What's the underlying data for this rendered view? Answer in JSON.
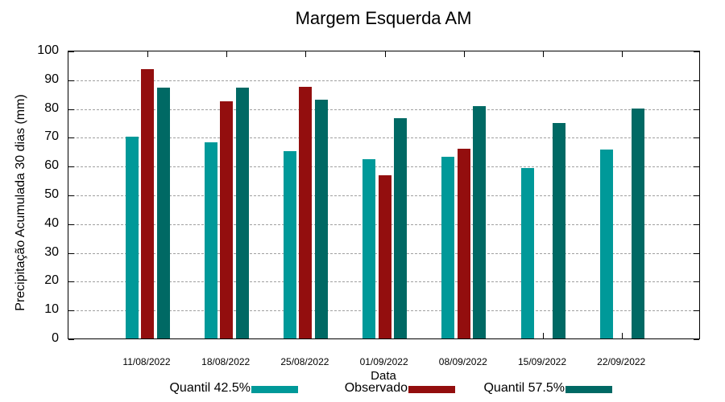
{
  "chart_data": {
    "type": "bar",
    "title": "Margem Esquerda AM",
    "xlabel": "Data",
    "ylabel": "Precipitação Acumulada 30 dias (mm)",
    "ylim": [
      0,
      100
    ],
    "yticks": [
      0,
      10,
      20,
      30,
      40,
      50,
      60,
      70,
      80,
      90,
      100
    ],
    "grid": true,
    "legend_position": "bottom",
    "categories": [
      "11/08/2022",
      "18/08/2022",
      "25/08/2022",
      "01/09/2022",
      "08/09/2022",
      "15/09/2022",
      "22/09/2022"
    ],
    "series": [
      {
        "name": "Quantil 42.5%",
        "color": "#009999",
        "values": [
          70.1,
          68.2,
          65.1,
          62.3,
          63.1,
          59.2,
          65.6
        ]
      },
      {
        "name": "Observado",
        "color": "#930e0e",
        "values": [
          93.6,
          82.4,
          87.4,
          56.7,
          65.9,
          null,
          null
        ]
      },
      {
        "name": "Quantil 57.5%",
        "color": "#006964",
        "values": [
          87.2,
          87.2,
          83.0,
          76.5,
          80.7,
          74.9,
          79.9
        ]
      }
    ]
  }
}
